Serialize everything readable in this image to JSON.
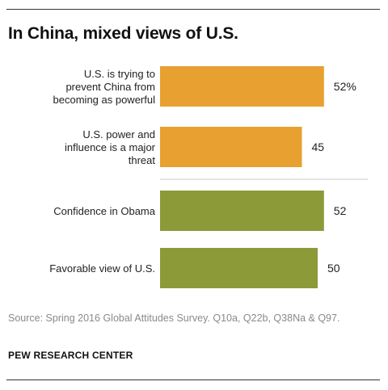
{
  "title": "In China, mixed views of U.S.",
  "source": "Source: Spring 2016 Global Attitudes Survey. Q10a, Q22b, Q38Na & Q97.",
  "organization": "PEW RESEARCH CENTER",
  "colors": {
    "orange": "#e8a030",
    "olive": "#8c9a38",
    "divider": "#c8c8c8",
    "rule": "#333333"
  },
  "chart_data": {
    "type": "bar",
    "orientation": "horizontal",
    "xlim": [
      0,
      55
    ],
    "categories": [
      [
        "U.S. is trying to",
        "prevent China from",
        "becoming as powerful"
      ],
      [
        "U.S. power and",
        "influence is a major",
        "threat"
      ],
      [
        "Confidence in Obama"
      ],
      [
        "Favorable  view of U.S."
      ]
    ],
    "values": [
      52,
      45,
      52,
      50
    ],
    "value_labels": [
      "52%",
      "45",
      "52",
      "50"
    ],
    "bar_colors": [
      "orange",
      "orange",
      "olive",
      "olive"
    ],
    "divider_after_index": 1
  }
}
